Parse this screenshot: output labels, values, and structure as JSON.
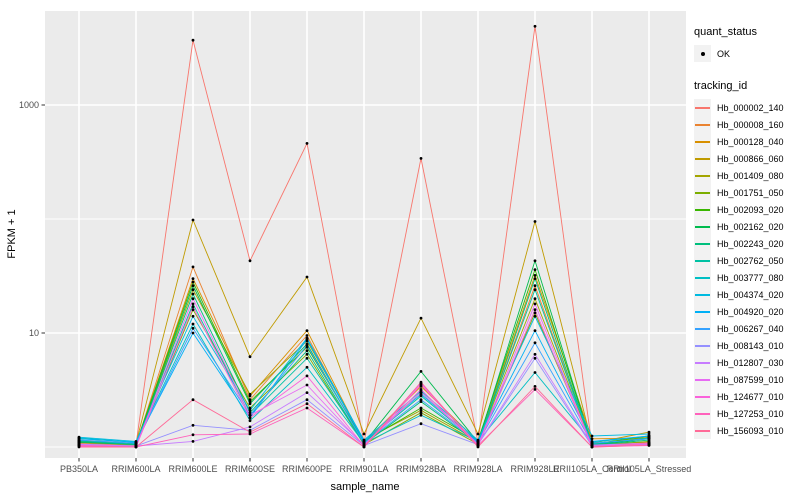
{
  "legend": {
    "quant_status": {
      "title": "quant_status",
      "items": [
        {
          "label": "OK",
          "marker": "black-point"
        }
      ]
    },
    "tracking_id": {
      "title": "tracking_id"
    }
  },
  "chart_data": {
    "type": "line",
    "title": "",
    "xlabel": "sample_name",
    "ylabel": "FPKM + 1",
    "y_scale": "log10",
    "ylim": [
      0.8,
      7000
    ],
    "y_ticks": [
      10,
      1000
    ],
    "y_minor_gridlines": [
      1,
      100
    ],
    "grid": true,
    "legend_position": "right",
    "style": {
      "panel_bg": "#EBEBEB",
      "grid_color": "#FFFFFF",
      "point_color": "#000000",
      "tick_color": "#333333",
      "tick_label_color": "#4D4D4D"
    },
    "categories": [
      "PB350LA",
      "RRIM600LA",
      "RRIM600LE",
      "RRIM600SE",
      "RRIM600PE",
      "RRIM901LA",
      "RRIM928BA",
      "RRIM928LA",
      "RRIM928LE",
      "RRII105LA_Control",
      "RRII105LA_Stressed"
    ],
    "series": [
      {
        "name": "Hb_000002_140",
        "color": "#F8766D",
        "values": [
          1.1,
          1.05,
          3700,
          43,
          460,
          1.1,
          340,
          1.1,
          4900,
          1.02,
          1.06
        ]
      },
      {
        "name": "Hb_000008_160",
        "color": "#EA8331",
        "values": [
          1.08,
          1.04,
          38,
          2.6,
          9.5,
          1.08,
          3.0,
          1.08,
          26,
          1.05,
          1.1
        ]
      },
      {
        "name": "Hb_000128_040",
        "color": "#D89000",
        "values": [
          1.12,
          1.06,
          30,
          2.8,
          10.5,
          1.1,
          3.4,
          1.12,
          32,
          1.18,
          1.2
        ]
      },
      {
        "name": "Hb_000866_060",
        "color": "#C09B00",
        "values": [
          1.15,
          1.08,
          98,
          6.2,
          31,
          1.3,
          13.5,
          1.3,
          95,
          1.08,
          1.35
        ]
      },
      {
        "name": "Hb_001409_080",
        "color": "#A3A500",
        "values": [
          1.1,
          1.05,
          24,
          2.9,
          8.5,
          1.15,
          2.1,
          1.1,
          20,
          1.06,
          1.22
        ]
      },
      {
        "name": "Hb_001751_050",
        "color": "#7CAE00",
        "values": [
          1.06,
          1.02,
          16,
          2.2,
          6.5,
          1.05,
          2.0,
          1.06,
          15,
          1.03,
          1.12
        ]
      },
      {
        "name": "Hb_002093_020",
        "color": "#39B600",
        "values": [
          1.14,
          1.07,
          28,
          2.5,
          7.5,
          1.12,
          2.2,
          1.14,
          36,
          1.06,
          1.25
        ]
      },
      {
        "name": "Hb_002162_020",
        "color": "#00BB4E",
        "values": [
          1.1,
          1.05,
          26,
          2.4,
          8.0,
          1.08,
          4.6,
          1.1,
          43,
          1.05,
          1.18
        ]
      },
      {
        "name": "Hb_002243_020",
        "color": "#00BF7D",
        "values": [
          1.12,
          1.05,
          22,
          2.0,
          7.0,
          1.06,
          2.5,
          1.08,
          30,
          1.04,
          1.15
        ]
      },
      {
        "name": "Hb_002762_050",
        "color": "#00C1A3",
        "values": [
          1.14,
          1.06,
          18,
          1.9,
          6.0,
          1.1,
          2.8,
          1.1,
          24,
          1.06,
          1.2
        ]
      },
      {
        "name": "Hb_003777_080",
        "color": "#00BFC4",
        "values": [
          1.2,
          1.1,
          12,
          1.7,
          5.0,
          1.08,
          1.9,
          1.12,
          4.5,
          1.1,
          1.25
        ]
      },
      {
        "name": "Hb_004374_020",
        "color": "#00BAE0",
        "values": [
          1.22,
          1.12,
          14,
          2.1,
          9.0,
          1.15,
          3.1,
          1.15,
          14,
          1.25,
          1.3
        ]
      },
      {
        "name": "Hb_004920_020",
        "color": "#00B0F6",
        "values": [
          1.18,
          1.1,
          10,
          1.8,
          8.8,
          1.12,
          2.9,
          1.12,
          10.5,
          1.12,
          1.25
        ]
      },
      {
        "name": "Hb_006267_040",
        "color": "#35A2FF",
        "values": [
          1.15,
          1.08,
          11,
          1.9,
          7.8,
          1.08,
          2.6,
          1.1,
          8.2,
          1.08,
          1.18
        ]
      },
      {
        "name": "Hb_008143_010",
        "color": "#9590FF",
        "values": [
          1.05,
          1.02,
          1.55,
          1.4,
          2.6,
          1.03,
          1.6,
          1.05,
          6.0,
          1.02,
          1.06
        ]
      },
      {
        "name": "Hb_012807_030",
        "color": "#C77CFF",
        "values": [
          1.06,
          1.02,
          1.12,
          1.5,
          3.0,
          1.05,
          3.0,
          1.06,
          6.5,
          1.04,
          1.08
        ]
      },
      {
        "name": "Hb_087599_010",
        "color": "#E76BF3",
        "values": [
          1.04,
          1.01,
          20,
          1.9,
          3.5,
          1.02,
          3.6,
          1.04,
          18,
          1.02,
          1.05
        ]
      },
      {
        "name": "Hb_124677_010",
        "color": "#FA62DB",
        "values": [
          1.02,
          1.0,
          17,
          1.8,
          4.2,
          1.02,
          3.2,
          1.02,
          16,
          1.0,
          1.03
        ]
      },
      {
        "name": "Hb_127253_010",
        "color": "#FF62BC",
        "values": [
          1.03,
          1.0,
          1.28,
          1.3,
          2.2,
          1.0,
          3.5,
          1.03,
          3.2,
          1.0,
          1.08
        ]
      },
      {
        "name": "Hb_156093_010",
        "color": "#FF6A98",
        "values": [
          1.0,
          1.0,
          2.6,
          1.35,
          2.4,
          1.0,
          3.7,
          1.0,
          3.4,
          1.0,
          1.04
        ]
      }
    ]
  }
}
